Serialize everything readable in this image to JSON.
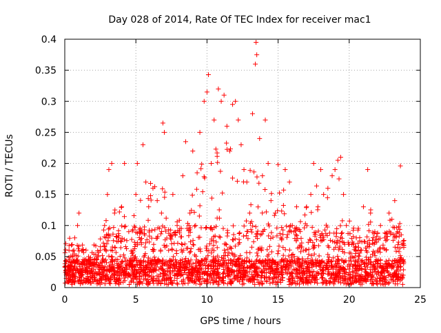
{
  "chart_data": {
    "type": "scatter",
    "title": "Day 028 of 2014, Rate Of TEC Index for receiver mac1",
    "xlabel": "GPS time / hours",
    "ylabel": "ROTI / TECUs",
    "xlim": [
      0,
      25
    ],
    "ylim": [
      0,
      0.4
    ],
    "x_ticks": [
      0,
      5,
      10,
      15,
      20,
      25
    ],
    "x_tick_labels": [
      "0",
      "5",
      "10",
      "15",
      "20",
      "25"
    ],
    "y_ticks": [
      0,
      0.05,
      0.1,
      0.15,
      0.2,
      0.25,
      0.3,
      0.35,
      0.4
    ],
    "y_tick_labels": [
      "0",
      "0.05",
      "0.1",
      "0.15",
      "0.2",
      "0.25",
      "0.3",
      "0.35",
      "0.4"
    ],
    "grid": true,
    "marker": "+",
    "marker_color": "#ff0000",
    "series": [
      {
        "name": "ROTI",
        "points": [
          [
            0.1,
            0.015
          ],
          [
            0.2,
            0.03
          ],
          [
            0.3,
            0.06
          ],
          [
            0.5,
            0.02
          ],
          [
            0.7,
            0.08
          ],
          [
            0.9,
            0.1
          ],
          [
            1.0,
            0.12
          ],
          [
            1.2,
            0.02
          ],
          [
            1.5,
            0.015
          ],
          [
            2.0,
            0.04
          ],
          [
            2.5,
            0.06
          ],
          [
            2.8,
            0.1
          ],
          [
            3.0,
            0.15
          ],
          [
            3.1,
            0.19
          ],
          [
            3.3,
            0.2
          ],
          [
            3.5,
            0.12
          ],
          [
            3.8,
            0.08
          ],
          [
            4.0,
            0.13
          ],
          [
            4.2,
            0.2
          ],
          [
            4.5,
            0.09
          ],
          [
            4.8,
            0.06
          ],
          [
            5.0,
            0.15
          ],
          [
            5.1,
            0.2
          ],
          [
            5.3,
            0.09
          ],
          [
            5.5,
            0.23
          ],
          [
            5.7,
            0.17
          ],
          [
            5.9,
            0.13
          ],
          [
            6.2,
            0.16
          ],
          [
            6.5,
            0.14
          ],
          [
            6.8,
            0.12
          ],
          [
            6.9,
            0.265
          ],
          [
            7.0,
            0.25
          ],
          [
            7.3,
            0.06
          ],
          [
            7.6,
            0.15
          ],
          [
            7.9,
            0.1
          ],
          [
            8.0,
            0.03
          ],
          [
            8.3,
            0.18
          ],
          [
            8.5,
            0.235
          ],
          [
            8.8,
            0.12
          ],
          [
            9.0,
            0.22
          ],
          [
            9.2,
            0.1
          ],
          [
            9.5,
            0.25
          ],
          [
            9.8,
            0.3
          ],
          [
            10.0,
            0.315
          ],
          [
            10.1,
            0.343
          ],
          [
            10.3,
            0.2
          ],
          [
            10.5,
            0.27
          ],
          [
            10.8,
            0.32
          ],
          [
            11.0,
            0.3
          ],
          [
            11.2,
            0.31
          ],
          [
            11.4,
            0.26
          ],
          [
            11.6,
            0.22
          ],
          [
            11.8,
            0.295
          ],
          [
            12.0,
            0.3
          ],
          [
            12.2,
            0.27
          ],
          [
            12.4,
            0.23
          ],
          [
            12.6,
            0.19
          ],
          [
            12.8,
            0.17
          ],
          [
            13.0,
            0.12
          ],
          [
            13.2,
            0.28
          ],
          [
            13.4,
            0.36
          ],
          [
            13.45,
            0.395
          ],
          [
            13.5,
            0.375
          ],
          [
            13.7,
            0.24
          ],
          [
            13.9,
            0.18
          ],
          [
            14.1,
            0.27
          ],
          [
            14.3,
            0.2
          ],
          [
            14.5,
            0.14
          ],
          [
            14.8,
            0.12
          ],
          [
            15.0,
            0.198
          ],
          [
            15.2,
            0.08
          ],
          [
            15.5,
            0.19
          ],
          [
            15.8,
            0.17
          ],
          [
            16.0,
            0.1
          ],
          [
            16.3,
            0.13
          ],
          [
            16.5,
            0.04
          ],
          [
            16.8,
            0.06
          ],
          [
            17.0,
            0.13
          ],
          [
            17.3,
            0.15
          ],
          [
            17.5,
            0.2
          ],
          [
            17.8,
            0.13
          ],
          [
            18.0,
            0.19
          ],
          [
            18.2,
            0.15
          ],
          [
            18.5,
            0.16
          ],
          [
            18.8,
            0.18
          ],
          [
            19.0,
            0.19
          ],
          [
            19.2,
            0.205
          ],
          [
            19.4,
            0.21
          ],
          [
            19.6,
            0.15
          ],
          [
            19.8,
            0.1
          ],
          [
            20.0,
            0.07
          ],
          [
            20.2,
            0.05
          ],
          [
            20.5,
            0.08
          ],
          [
            20.8,
            0.06
          ],
          [
            21.0,
            0.13
          ],
          [
            21.3,
            0.19
          ],
          [
            21.5,
            0.12
          ],
          [
            21.8,
            0.09
          ],
          [
            22.0,
            0.06
          ],
          [
            22.2,
            0.1
          ],
          [
            22.5,
            0.08
          ],
          [
            22.8,
            0.12
          ],
          [
            23.0,
            0.11
          ],
          [
            23.2,
            0.14
          ],
          [
            23.4,
            0.09
          ],
          [
            23.6,
            0.196
          ],
          [
            23.8,
            0.02
          ]
        ],
        "density_profile": [
          [
            0.0,
            0.07
          ],
          [
            0.5,
            0.06
          ],
          [
            1.0,
            0.08
          ],
          [
            1.5,
            0.04
          ],
          [
            2.0,
            0.05
          ],
          [
            2.5,
            0.07
          ],
          [
            3.0,
            0.12
          ],
          [
            3.5,
            0.11
          ],
          [
            4.0,
            0.12
          ],
          [
            4.5,
            0.09
          ],
          [
            5.0,
            0.12
          ],
          [
            5.5,
            0.16
          ],
          [
            6.0,
            0.15
          ],
          [
            6.5,
            0.15
          ],
          [
            7.0,
            0.14
          ],
          [
            7.5,
            0.1
          ],
          [
            8.0,
            0.1
          ],
          [
            8.5,
            0.14
          ],
          [
            9.0,
            0.16
          ],
          [
            9.5,
            0.2
          ],
          [
            10.0,
            0.22
          ],
          [
            10.5,
            0.24
          ],
          [
            11.0,
            0.25
          ],
          [
            11.5,
            0.24
          ],
          [
            12.0,
            0.23
          ],
          [
            12.5,
            0.19
          ],
          [
            13.0,
            0.17
          ],
          [
            13.5,
            0.2
          ],
          [
            14.0,
            0.18
          ],
          [
            14.5,
            0.15
          ],
          [
            15.0,
            0.14
          ],
          [
            15.5,
            0.14
          ],
          [
            16.0,
            0.12
          ],
          [
            16.5,
            0.1
          ],
          [
            17.0,
            0.11
          ],
          [
            17.5,
            0.14
          ],
          [
            18.0,
            0.15
          ],
          [
            18.5,
            0.16
          ],
          [
            19.0,
            0.17
          ],
          [
            19.5,
            0.15
          ],
          [
            20.0,
            0.1
          ],
          [
            20.5,
            0.08
          ],
          [
            21.0,
            0.1
          ],
          [
            21.5,
            0.11
          ],
          [
            22.0,
            0.08
          ],
          [
            22.5,
            0.08
          ],
          [
            23.0,
            0.1
          ],
          [
            23.5,
            0.11
          ],
          [
            23.9,
            0.06
          ]
        ]
      }
    ]
  }
}
